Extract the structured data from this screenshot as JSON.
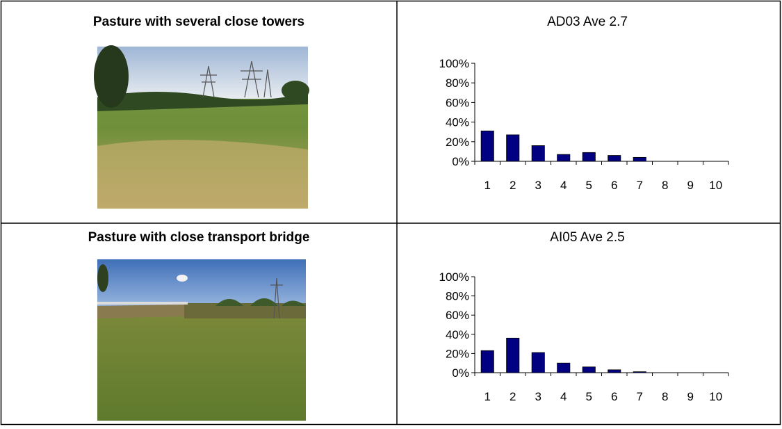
{
  "table": {
    "rows": [
      {
        "label": "Pasture with several close towers"
      },
      {
        "label": "Pasture with close transport bridge"
      }
    ]
  },
  "chart_data": [
    {
      "type": "bar",
      "title": "AD03 Ave 2.7",
      "categories": [
        "1",
        "2",
        "3",
        "4",
        "5",
        "6",
        "7",
        "8",
        "9",
        "10"
      ],
      "values": [
        31,
        27,
        16,
        7,
        9,
        6,
        4,
        0,
        0,
        0
      ],
      "color": "#000080",
      "ylim": [
        0,
        100
      ],
      "yticks": [
        {
          "value": 0,
          "label": "0%"
        },
        {
          "value": 20,
          "label": "20%"
        },
        {
          "value": 40,
          "label": "40%"
        },
        {
          "value": 60,
          "label": "60%"
        },
        {
          "value": 80,
          "label": "80%"
        },
        {
          "value": 100,
          "label": "100%"
        }
      ]
    },
    {
      "type": "bar",
      "title": "AI05 Ave 2.5",
      "categories": [
        "1",
        "2",
        "3",
        "4",
        "5",
        "6",
        "7",
        "8",
        "9",
        "10"
      ],
      "values": [
        23,
        36,
        21,
        10,
        6,
        3,
        1,
        0,
        0,
        0
      ],
      "color": "#000080",
      "ylim": [
        0,
        100
      ],
      "yticks": [
        {
          "value": 0,
          "label": "0%"
        },
        {
          "value": 20,
          "label": "20%"
        },
        {
          "value": 40,
          "label": "40%"
        },
        {
          "value": 60,
          "label": "60%"
        },
        {
          "value": 80,
          "label": "80%"
        },
        {
          "value": 100,
          "label": "100%"
        }
      ]
    }
  ]
}
